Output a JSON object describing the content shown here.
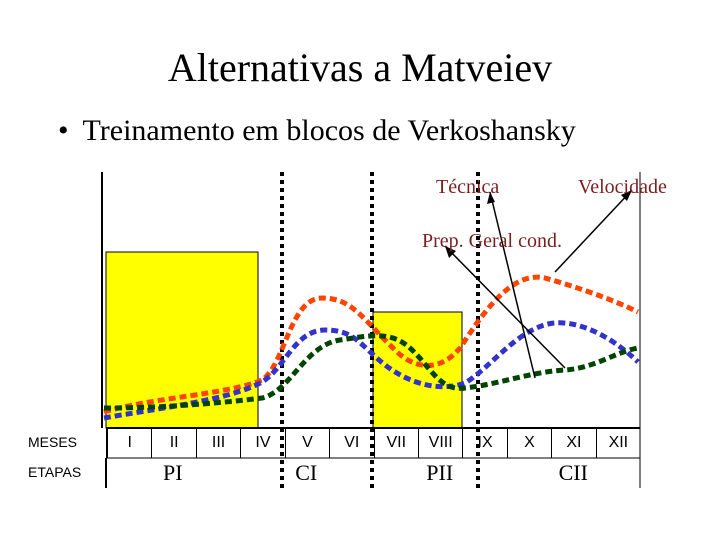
{
  "title": "Alternativas a Matveiev",
  "bullet": "Treinamento em blocos de Verkoshansky",
  "labels": {
    "tecnica": "Técnica",
    "velocidade": "Velocidade",
    "prep": "Prep. Geral cond."
  },
  "row_labels": {
    "meses": "MESES",
    "etapas": "ETAPAS"
  },
  "months": [
    "I",
    "II",
    "III",
    "IV",
    "V",
    "VI",
    "VII",
    "VIII",
    "IX",
    "X",
    "XI",
    "XII"
  ],
  "stages": [
    "PI",
    "CI",
    "PII",
    "CII"
  ],
  "colors": {
    "block": "#ffff00",
    "velocidade": "#ff4400",
    "tecnica": "#3333cc",
    "prep": "#004400"
  }
}
